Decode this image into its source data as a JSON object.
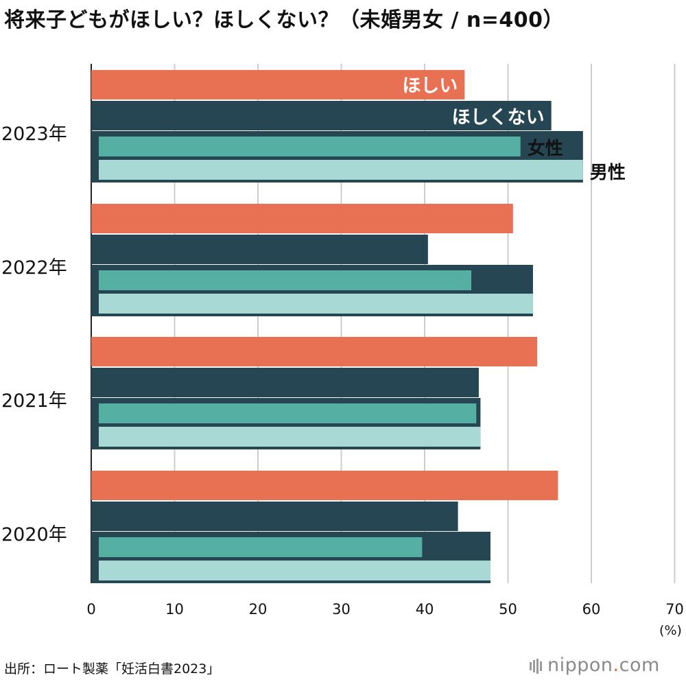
{
  "title": "将来子どもがほしい？ほしくない？（未婚男女 / n=400）",
  "source": "出所：ロート製薬「妊活白書2023」",
  "logo": {
    "name": "nippon",
    "dot": ".",
    "tld": "com"
  },
  "chart_data": {
    "type": "bar",
    "orientation": "horizontal",
    "categories": [
      "2023年",
      "2022年",
      "2021年",
      "2020年"
    ],
    "series": [
      {
        "name": "ほしい",
        "color": "#e87053",
        "values": [
          44.8,
          50.6,
          53.5,
          56.0
        ]
      },
      {
        "name": "ほしくない",
        "color": "#264653",
        "values": [
          55.2,
          40.4,
          46.5,
          44.0
        ]
      },
      {
        "name": "女性",
        "color": "#55b0a3",
        "values": [
          51.5,
          45.6,
          46.2,
          39.7
        ]
      },
      {
        "name": "男性",
        "color": "#a9d9d5",
        "values": [
          59.0,
          53.0,
          46.7,
          47.9
        ]
      }
    ],
    "xlim": [
      0,
      70
    ],
    "xticks": [
      0,
      10,
      20,
      30,
      40,
      50,
      60,
      70
    ],
    "xunit": "(%)",
    "grid": true
  }
}
